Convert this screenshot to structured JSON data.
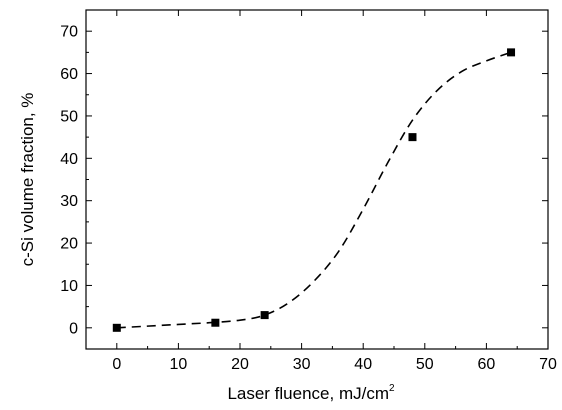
{
  "chart_data": {
    "type": "scatter",
    "xlabel": "Laser fluence, mJ/cm",
    "xlabel_superscript": "2",
    "ylabel": "c-Si volume fraction, %",
    "xlim": [
      -5,
      70
    ],
    "ylim": [
      -5,
      75
    ],
    "x_ticks": [
      0,
      10,
      20,
      30,
      40,
      50,
      60,
      70
    ],
    "y_ticks": [
      0,
      10,
      20,
      30,
      40,
      50,
      60,
      70
    ],
    "grid": false,
    "series": [
      {
        "marker": "square",
        "color": "#000000",
        "x": [
          0,
          16,
          24,
          48,
          64
        ],
        "y": [
          0,
          1.2,
          3,
          45,
          65
        ]
      }
    ],
    "fit_curve": {
      "style": "dashed",
      "color": "#000000",
      "x": [
        0,
        5,
        10,
        15,
        20,
        24,
        28,
        32,
        36,
        40,
        44,
        48,
        52,
        56,
        60,
        64
      ],
      "y": [
        0,
        0.4,
        0.8,
        1.2,
        1.8,
        3,
        6,
        11,
        18,
        28,
        39,
        49,
        56,
        60.5,
        63,
        65
      ]
    }
  }
}
